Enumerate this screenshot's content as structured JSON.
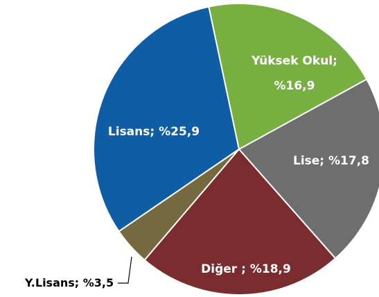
{
  "chart_data": {
    "type": "pie",
    "values": [
      16.9,
      17.8,
      18.9,
      3.5,
      25.9
    ],
    "value_labels": [
      "Yüksek Okul; %16,9",
      "Lise; %17,8",
      "Diğer ; %18,9",
      "Y.Lisans; %3,5",
      "Lisans; %25,9"
    ],
    "colors": [
      "#77b041",
      "#6e6e6e",
      "#7b2c2e",
      "#76693f",
      "#0f5ea5"
    ]
  }
}
